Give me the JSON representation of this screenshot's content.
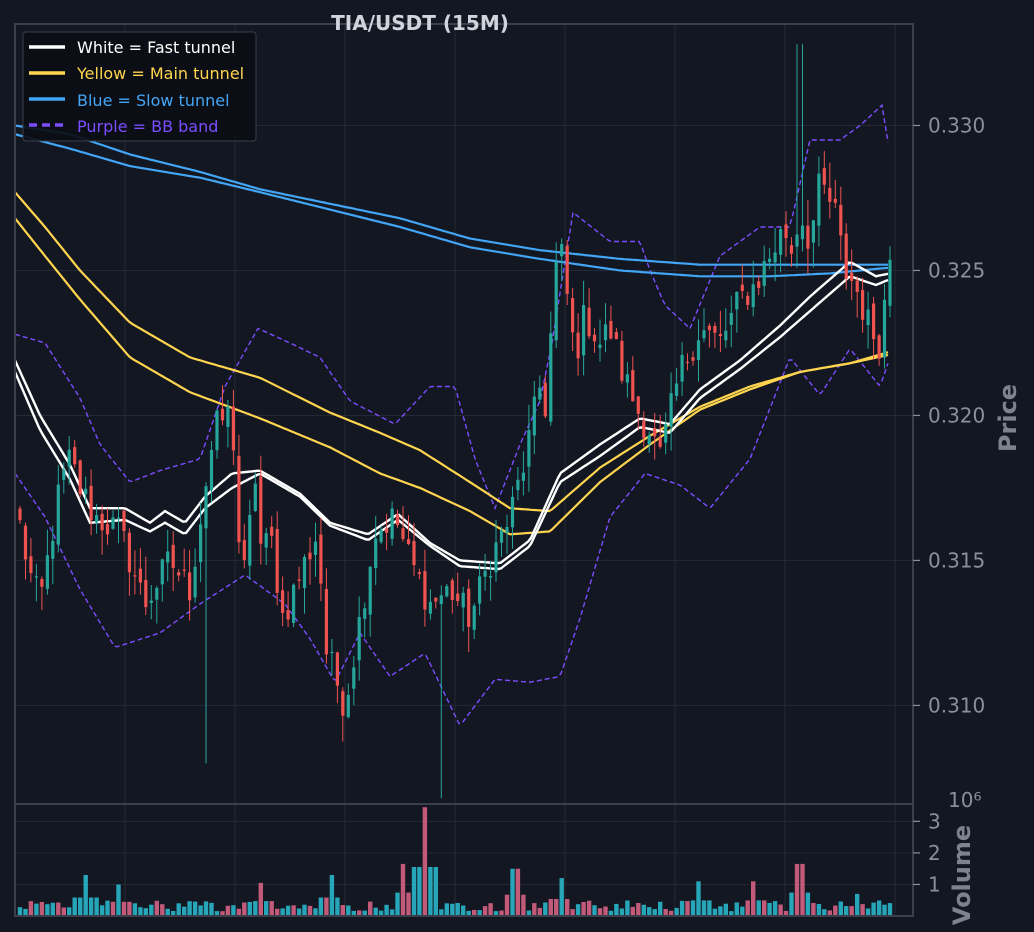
{
  "chart_data": {
    "type": "candlestick",
    "title": "TIA/USDT (15M)",
    "colors": {
      "background": "#131722",
      "up": "#26a69a",
      "down": "#ef5350",
      "fast": "#ffffff",
      "main": "#ffd54f",
      "slow": "#42a5f5",
      "bb": "#7c4dff",
      "volume_up": "#26a6b8",
      "volume_down": "#c25a7a"
    },
    "price_panel": {
      "ylabel": "Price",
      "ylim": [
        0.3066,
        0.3335
      ],
      "yticks": [
        0.31,
        0.315,
        0.32,
        0.325,
        0.33
      ],
      "ytick_labels": [
        "0.310",
        "0.315",
        "0.320",
        "0.325",
        "0.330"
      ],
      "grid": true
    },
    "volume_panel": {
      "ylabel": "Volume",
      "offset_label": "10⁶",
      "ylim": [
        0,
        3.55
      ],
      "yticks": [
        1,
        2,
        3
      ],
      "ytick_labels": [
        "1",
        "2",
        "3"
      ],
      "grid": true
    },
    "legend": {
      "position": "top-left",
      "entries": [
        {
          "label": "White = Fast tunnel",
          "color": "#ffffff",
          "style": "solid"
        },
        {
          "label": "Yellow = Main tunnel",
          "color": "#ffd54f",
          "style": "solid"
        },
        {
          "label": "Blue = Slow tunnel",
          "color": "#42a5f5",
          "style": "solid"
        },
        {
          "label": "Purple = BB band",
          "color": "#7c4dff",
          "style": "dashed"
        }
      ]
    },
    "bars": 160,
    "close_anchors": [
      [
        0,
        0.3185
      ],
      [
        10,
        0.3175
      ],
      [
        20,
        0.3162
      ],
      [
        30,
        0.3145
      ],
      [
        40,
        0.3135
      ],
      [
        50,
        0.3155
      ],
      [
        60,
        0.3175
      ],
      [
        70,
        0.3185
      ],
      [
        80,
        0.3175
      ],
      [
        95,
        0.3165
      ],
      [
        120,
        0.316
      ],
      [
        145,
        0.3135
      ],
      [
        170,
        0.315
      ],
      [
        190,
        0.314
      ],
      [
        205,
        0.3175
      ],
      [
        215,
        0.3195
      ],
      [
        225,
        0.32
      ],
      [
        232,
        0.32
      ],
      [
        240,
        0.315
      ],
      [
        245,
        0.3145
      ],
      [
        255,
        0.318
      ],
      [
        262,
        0.315
      ],
      [
        270,
        0.316
      ],
      [
        283,
        0.313
      ],
      [
        300,
        0.3145
      ],
      [
        318,
        0.316
      ],
      [
        325,
        0.312
      ],
      [
        345,
        0.31
      ],
      [
        360,
        0.313
      ],
      [
        375,
        0.316
      ],
      [
        395,
        0.3165
      ],
      [
        410,
        0.315
      ],
      [
        430,
        0.3135
      ],
      [
        450,
        0.314
      ],
      [
        470,
        0.313
      ],
      [
        490,
        0.315
      ],
      [
        510,
        0.3165
      ],
      [
        525,
        0.3185
      ],
      [
        540,
        0.321
      ],
      [
        548,
        0.32
      ],
      [
        552,
        0.324
      ],
      [
        555,
        0.325
      ],
      [
        562,
        0.3255
      ],
      [
        575,
        0.322
      ],
      [
        585,
        0.3235
      ],
      [
        600,
        0.3225
      ],
      [
        610,
        0.323
      ],
      [
        622,
        0.3215
      ],
      [
        640,
        0.32
      ],
      [
        650,
        0.3195
      ],
      [
        660,
        0.3185
      ],
      [
        680,
        0.3215
      ],
      [
        700,
        0.323
      ],
      [
        720,
        0.3225
      ],
      [
        740,
        0.324
      ],
      [
        755,
        0.3245
      ],
      [
        770,
        0.3255
      ],
      [
        785,
        0.3265
      ],
      [
        790,
        0.3255
      ],
      [
        800,
        0.327
      ],
      [
        810,
        0.326
      ],
      [
        820,
        0.328
      ],
      [
        835,
        0.327
      ],
      [
        845,
        0.325
      ],
      [
        855,
        0.3245
      ],
      [
        870,
        0.323
      ],
      [
        880,
        0.3225
      ],
      [
        890,
        0.3255
      ]
    ],
    "tunnel_anchors": {
      "fast_a": [
        [
          15,
          0.3215
        ],
        [
          40,
          0.3195
        ],
        [
          70,
          0.3178
        ],
        [
          90,
          0.3163
        ],
        [
          125,
          0.3164
        ],
        [
          150,
          0.316
        ],
        [
          165,
          0.3163
        ],
        [
          185,
          0.3159
        ],
        [
          205,
          0.3168
        ],
        [
          232,
          0.3175
        ],
        [
          260,
          0.318
        ],
        [
          300,
          0.3172
        ],
        [
          330,
          0.3162
        ],
        [
          368,
          0.3157
        ],
        [
          398,
          0.3164
        ],
        [
          430,
          0.3155
        ],
        [
          460,
          0.3148
        ],
        [
          500,
          0.3147
        ],
        [
          530,
          0.3155
        ],
        [
          560,
          0.3177
        ],
        [
          600,
          0.3186
        ],
        [
          640,
          0.3196
        ],
        [
          670,
          0.3194
        ],
        [
          700,
          0.3206
        ],
        [
          740,
          0.3216
        ],
        [
          780,
          0.3227
        ],
        [
          810,
          0.3236
        ],
        [
          850,
          0.3248
        ],
        [
          876,
          0.3245
        ],
        [
          890,
          0.3247
        ]
      ],
      "fast_b": [
        [
          15,
          0.3219
        ],
        [
          40,
          0.32
        ],
        [
          70,
          0.3183
        ],
        [
          90,
          0.3168
        ],
        [
          125,
          0.3168
        ],
        [
          150,
          0.3163
        ],
        [
          165,
          0.3167
        ],
        [
          185,
          0.3163
        ],
        [
          205,
          0.3172
        ],
        [
          232,
          0.318
        ],
        [
          260,
          0.3181
        ],
        [
          300,
          0.3173
        ],
        [
          330,
          0.3163
        ],
        [
          368,
          0.3159
        ],
        [
          398,
          0.3166
        ],
        [
          430,
          0.3156
        ],
        [
          460,
          0.315
        ],
        [
          500,
          0.3149
        ],
        [
          530,
          0.3157
        ],
        [
          560,
          0.318
        ],
        [
          600,
          0.319
        ],
        [
          640,
          0.3199
        ],
        [
          670,
          0.3197
        ],
        [
          700,
          0.3209
        ],
        [
          740,
          0.3219
        ],
        [
          780,
          0.3231
        ],
        [
          810,
          0.3241
        ],
        [
          850,
          0.3253
        ],
        [
          876,
          0.3248
        ],
        [
          890,
          0.3249
        ]
      ],
      "main_a": [
        [
          15,
          0.3268
        ],
        [
          45,
          0.3255
        ],
        [
          80,
          0.324
        ],
        [
          130,
          0.322
        ],
        [
          190,
          0.3208
        ],
        [
          260,
          0.3199
        ],
        [
          330,
          0.3189
        ],
        [
          380,
          0.318
        ],
        [
          420,
          0.3175
        ],
        [
          470,
          0.3167
        ],
        [
          510,
          0.3159
        ],
        [
          550,
          0.316
        ],
        [
          600,
          0.3177
        ],
        [
          650,
          0.319
        ],
        [
          700,
          0.3202
        ],
        [
          750,
          0.3209
        ],
        [
          800,
          0.3215
        ],
        [
          850,
          0.3218
        ],
        [
          890,
          0.3221
        ]
      ],
      "main_b": [
        [
          15,
          0.3277
        ],
        [
          45,
          0.3265
        ],
        [
          80,
          0.325
        ],
        [
          130,
          0.3232
        ],
        [
          190,
          0.322
        ],
        [
          260,
          0.3213
        ],
        [
          330,
          0.3201
        ],
        [
          380,
          0.3194
        ],
        [
          420,
          0.3188
        ],
        [
          470,
          0.3177
        ],
        [
          510,
          0.3168
        ],
        [
          550,
          0.3167
        ],
        [
          600,
          0.3182
        ],
        [
          650,
          0.3193
        ],
        [
          700,
          0.3203
        ],
        [
          750,
          0.321
        ],
        [
          800,
          0.3215
        ],
        [
          850,
          0.3218
        ],
        [
          890,
          0.3222
        ]
      ],
      "slow_a": [
        [
          15,
          0.3297
        ],
        [
          70,
          0.3292
        ],
        [
          130,
          0.3286
        ],
        [
          200,
          0.3282
        ],
        [
          260,
          0.3277
        ],
        [
          330,
          0.3271
        ],
        [
          400,
          0.3265
        ],
        [
          470,
          0.3258
        ],
        [
          540,
          0.3254
        ],
        [
          620,
          0.325
        ],
        [
          700,
          0.3248
        ],
        [
          770,
          0.3248
        ],
        [
          830,
          0.3249
        ],
        [
          890,
          0.3251
        ]
      ],
      "slow_b": [
        [
          15,
          0.33
        ],
        [
          70,
          0.3297
        ],
        [
          130,
          0.329
        ],
        [
          200,
          0.3284
        ],
        [
          260,
          0.3278
        ],
        [
          330,
          0.3273
        ],
        [
          400,
          0.3268
        ],
        [
          470,
          0.3261
        ],
        [
          540,
          0.3257
        ],
        [
          620,
          0.3254
        ],
        [
          700,
          0.3252
        ],
        [
          770,
          0.3252
        ],
        [
          830,
          0.3252
        ],
        [
          890,
          0.3252
        ]
      ],
      "bb_upper": [
        [
          15,
          0.3228
        ],
        [
          45,
          0.3225
        ],
        [
          80,
          0.3206
        ],
        [
          100,
          0.319
        ],
        [
          130,
          0.3177
        ],
        [
          160,
          0.3181
        ],
        [
          200,
          0.3185
        ],
        [
          225,
          0.321
        ],
        [
          258,
          0.323
        ],
        [
          290,
          0.3225
        ],
        [
          320,
          0.322
        ],
        [
          350,
          0.3205
        ],
        [
          395,
          0.3197
        ],
        [
          430,
          0.321
        ],
        [
          455,
          0.321
        ],
        [
          475,
          0.3185
        ],
        [
          495,
          0.3168
        ],
        [
          520,
          0.319
        ],
        [
          540,
          0.3205
        ],
        [
          552,
          0.3225
        ],
        [
          573,
          0.327
        ],
        [
          610,
          0.326
        ],
        [
          640,
          0.326
        ],
        [
          650,
          0.325
        ],
        [
          665,
          0.3238
        ],
        [
          690,
          0.323
        ],
        [
          720,
          0.3255
        ],
        [
          760,
          0.3265
        ],
        [
          790,
          0.3265
        ],
        [
          810,
          0.3295
        ],
        [
          840,
          0.3295
        ],
        [
          860,
          0.33
        ],
        [
          882,
          0.3307
        ],
        [
          890,
          0.329
        ]
      ],
      "bb_lower": [
        [
          15,
          0.318
        ],
        [
          45,
          0.3165
        ],
        [
          80,
          0.314
        ],
        [
          115,
          0.312
        ],
        [
          160,
          0.3125
        ],
        [
          200,
          0.3135
        ],
        [
          245,
          0.3145
        ],
        [
          285,
          0.3135
        ],
        [
          310,
          0.3123
        ],
        [
          335,
          0.3108
        ],
        [
          360,
          0.3125
        ],
        [
          390,
          0.311
        ],
        [
          425,
          0.3118
        ],
        [
          460,
          0.3093
        ],
        [
          495,
          0.3109
        ],
        [
          530,
          0.3108
        ],
        [
          560,
          0.311
        ],
        [
          580,
          0.313
        ],
        [
          610,
          0.3165
        ],
        [
          645,
          0.318
        ],
        [
          680,
          0.3176
        ],
        [
          710,
          0.3168
        ],
        [
          750,
          0.3185
        ],
        [
          790,
          0.322
        ],
        [
          820,
          0.3207
        ],
        [
          850,
          0.3223
        ],
        [
          880,
          0.321
        ],
        [
          890,
          0.322
        ]
      ]
    },
    "notable_wicks": [
      [
        205,
        0.308
      ],
      [
        440,
        0.3068
      ],
      [
        800,
        0.3328
      ]
    ],
    "volume_spikes": [
      [
        85,
        1.3
      ],
      [
        120,
        1.0
      ],
      [
        262,
        1.05
      ],
      [
        330,
        1.3
      ],
      [
        405,
        1.65
      ],
      [
        425,
        3.45
      ],
      [
        515,
        1.5
      ],
      [
        560,
        1.2
      ],
      [
        700,
        1.1
      ],
      [
        755,
        1.1
      ],
      [
        800,
        1.65
      ],
      [
        855,
        0.7
      ]
    ]
  }
}
